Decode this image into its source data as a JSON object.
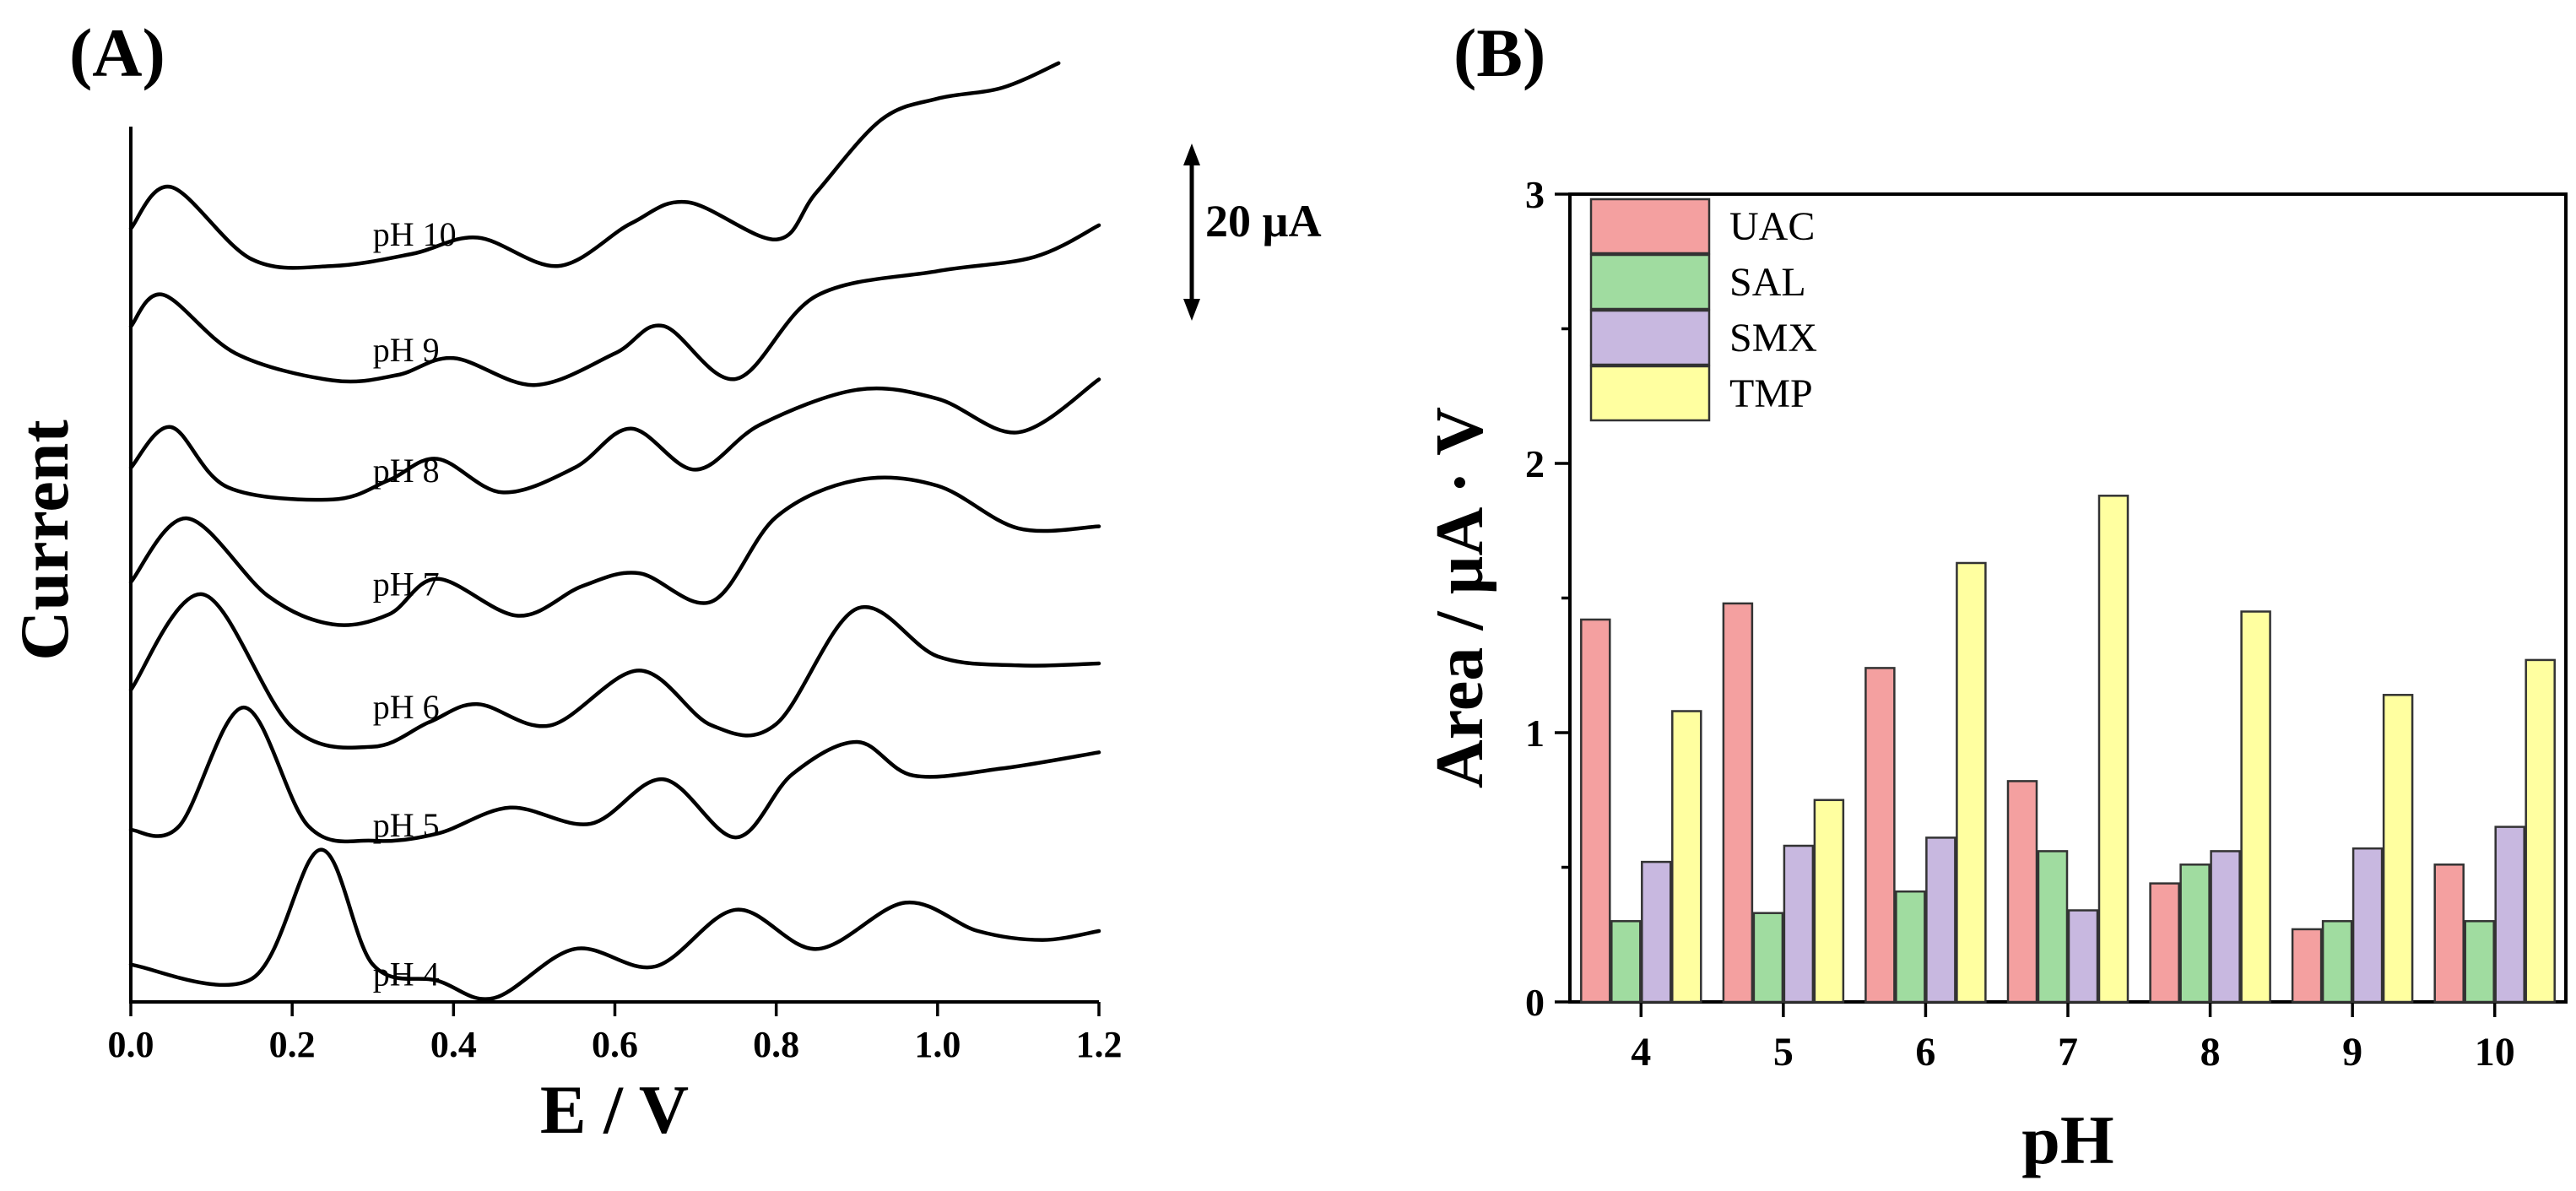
{
  "chart_data": [
    {
      "panel": "(A)",
      "type": "line",
      "title": "",
      "xlabel": "E / V",
      "ylabel": "Current",
      "xlim": [
        0.0,
        1.2
      ],
      "xticks": [
        "0.0",
        "0.2",
        "0.4",
        "0.6",
        "0.8",
        "1.0",
        "1.2"
      ],
      "y_ticks": "none (offset traces)",
      "scale_bar": "20 µA",
      "series": [
        {
          "name": "pH 10",
          "x": [
            0.0,
            0.05,
            0.15,
            0.25,
            0.35,
            0.43,
            0.53,
            0.62,
            0.69,
            0.8,
            0.85,
            0.93,
            1.0,
            1.08,
            1.15
          ],
          "y": [
            163.6,
            172.4,
            157.1,
            155.7,
            158.3,
            161.7,
            155.7,
            164.7,
            169.2,
            161.3,
            171.3,
            186.6,
            191.1,
            193.4,
            198.6
          ]
        },
        {
          "name": "pH 9",
          "x": [
            0.0,
            0.04,
            0.13,
            0.25,
            0.33,
            0.4,
            0.5,
            0.6,
            0.66,
            0.75,
            0.85,
            1.0,
            1.12,
            1.2
          ],
          "y": [
            142.9,
            149.6,
            137.2,
            131.5,
            132.6,
            136.2,
            130.5,
            137.2,
            143.0,
            131.8,
            149.4,
            154.6,
            157.6,
            164.3
          ]
        },
        {
          "name": "pH 8",
          "x": [
            0.0,
            0.05,
            0.12,
            0.25,
            0.32,
            0.38,
            0.46,
            0.55,
            0.62,
            0.7,
            0.78,
            0.9,
            1.0,
            1.1,
            1.2
          ],
          "y": [
            113.0,
            121.6,
            108.9,
            106.3,
            110.4,
            114.9,
            107.8,
            113.0,
            121.3,
            112.6,
            122.1,
            129.5,
            127.6,
            120.5,
            131.7
          ]
        },
        {
          "name": "pH 7",
          "x": [
            0.0,
            0.07,
            0.17,
            0.25,
            0.32,
            0.38,
            0.48,
            0.56,
            0.63,
            0.72,
            0.8,
            0.9,
            1.0,
            1.1,
            1.2
          ],
          "y": [
            88.8,
            102.3,
            85.9,
            79.9,
            82.0,
            89.5,
            81.7,
            88.0,
            90.7,
            84.7,
            102.6,
            110.4,
            109.2,
            100.2,
            100.6
          ]
        },
        {
          "name": "pH 6",
          "x": [
            0.0,
            0.09,
            0.2,
            0.3,
            0.37,
            0.43,
            0.52,
            0.63,
            0.72,
            0.8,
            0.9,
            1.0,
            1.1,
            1.2
          ],
          "y": [
            66.0,
            86.2,
            58.1,
            54.0,
            59.2,
            63.0,
            58.5,
            70.1,
            58.5,
            58.8,
            83.2,
            73.1,
            71.2,
            71.6
          ]
        },
        {
          "name": "pH 5",
          "x": [
            0.0,
            0.06,
            0.14,
            0.22,
            0.3,
            0.38,
            0.47,
            0.57,
            0.66,
            0.75,
            0.82,
            0.9,
            0.97,
            1.08,
            1.2
          ],
          "y": [
            36.4,
            37.2,
            62.3,
            37.2,
            34.1,
            35.6,
            41.1,
            37.7,
            47.1,
            34.8,
            48.2,
            55.0,
            47.9,
            49.4,
            52.8
          ]
        },
        {
          "name": "pH 4",
          "x": [
            0.0,
            0.15,
            0.235,
            0.3,
            0.38,
            0.45,
            0.55,
            0.65,
            0.75,
            0.85,
            0.96,
            1.05,
            1.13,
            1.2
          ],
          "y": [
            7.9,
            4.9,
            32.2,
            7.9,
            4.5,
            0.8,
            11.2,
            7.5,
            19.5,
            11.2,
            21.0,
            15.0,
            13.1,
            15.0
          ]
        }
      ]
    },
    {
      "panel": "(B)",
      "type": "bar",
      "title": "",
      "xlabel": "pH",
      "ylabel": "Area / µA · V",
      "ylim": [
        0,
        3
      ],
      "yticks": [
        "0",
        "1",
        "2",
        "3"
      ],
      "categories": [
        "4",
        "5",
        "6",
        "7",
        "8",
        "9",
        "10"
      ],
      "legend_position": "top-left",
      "series": [
        {
          "name": "UAC",
          "color": "#f4a0a0",
          "values": [
            1.42,
            1.48,
            1.24,
            0.82,
            0.44,
            0.27,
            0.51
          ]
        },
        {
          "name": "SAL",
          "color": "#a0dca0",
          "values": [
            0.3,
            0.33,
            0.41,
            0.56,
            0.51,
            0.3,
            0.3
          ]
        },
        {
          "name": "SMX",
          "color": "#c8b8e0",
          "values": [
            0.52,
            0.58,
            0.61,
            0.34,
            0.56,
            0.57,
            0.65
          ]
        },
        {
          "name": "TMP",
          "color": "#ffffa0",
          "values": [
            1.08,
            0.75,
            1.63,
            1.88,
            1.45,
            1.14,
            1.27
          ]
        }
      ]
    }
  ]
}
